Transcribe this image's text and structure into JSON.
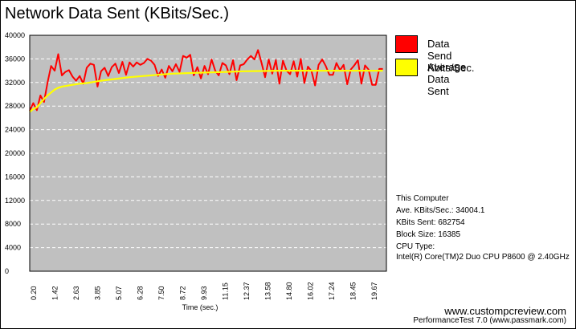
{
  "chart_data": {
    "type": "line",
    "title": "Network Data Sent (KBits/Sec.)",
    "xlabel": "Time (sec.)",
    "ylabel": "",
    "ylim": [
      0,
      40000
    ],
    "yticks": [
      0,
      4000,
      8000,
      12000,
      16000,
      20000,
      24000,
      28000,
      32000,
      36000,
      40000
    ],
    "xticks": [
      "0.20",
      "1.42",
      "2.63",
      "3.85",
      "5.07",
      "6.28",
      "7.50",
      "8.72",
      "9.93",
      "11.15",
      "12.37",
      "13.58",
      "14.80",
      "16.02",
      "17.24",
      "18.45",
      "19.67"
    ],
    "xlim": [
      0,
      20
    ],
    "grid": true,
    "legend_position": "right",
    "series": [
      {
        "name": "Data Send Kbits/Sec.",
        "color": "#ff0000",
        "x": [
          0.0,
          0.2,
          0.4,
          0.6,
          0.8,
          1.0,
          1.2,
          1.4,
          1.6,
          1.8,
          2.0,
          2.2,
          2.4,
          2.6,
          2.8,
          3.0,
          3.2,
          3.4,
          3.6,
          3.8,
          4.0,
          4.2,
          4.4,
          4.6,
          4.8,
          5.0,
          5.2,
          5.4,
          5.6,
          5.8,
          6.0,
          6.2,
          6.4,
          6.6,
          6.8,
          7.0,
          7.2,
          7.4,
          7.6,
          7.8,
          8.0,
          8.2,
          8.4,
          8.6,
          8.8,
          9.0,
          9.2,
          9.4,
          9.6,
          9.8,
          10.0,
          10.2,
          10.4,
          10.6,
          10.8,
          11.0,
          11.2,
          11.4,
          11.6,
          11.8,
          12.0,
          12.2,
          12.4,
          12.6,
          12.8,
          13.0,
          13.2,
          13.4,
          13.6,
          13.8,
          14.0,
          14.2,
          14.4,
          14.6,
          14.8,
          15.0,
          15.2,
          15.4,
          15.6,
          15.8,
          16.0,
          16.2,
          16.4,
          16.6,
          16.8,
          17.0,
          17.2,
          17.4,
          17.6,
          17.8,
          18.0,
          18.2,
          18.4,
          18.6,
          18.8,
          19.0,
          19.2,
          19.4,
          19.6,
          19.8
        ],
        "values": [
          27200,
          28500,
          27300,
          29800,
          28700,
          32000,
          34800,
          34000,
          36800,
          33200,
          33800,
          34100,
          33000,
          32300,
          33100,
          31800,
          34500,
          35200,
          35000,
          31300,
          33900,
          34500,
          33100,
          34600,
          35200,
          33600,
          35500,
          33300,
          35400,
          34700,
          35400,
          35000,
          35300,
          36000,
          35700,
          35000,
          33100,
          34200,
          32800,
          34800,
          33900,
          35100,
          33800,
          36500,
          36200,
          36700,
          33200,
          34600,
          32700,
          34800,
          33400,
          35900,
          34000,
          33200,
          35300,
          34900,
          33400,
          35800,
          32400,
          34900,
          35100,
          35900,
          36500,
          35900,
          37500,
          35300,
          32900,
          35900,
          33500,
          35800,
          31800,
          35700,
          34000,
          33400,
          35600,
          33000,
          36000,
          31900,
          34700,
          33900,
          31500,
          35000,
          35900,
          34800,
          33300,
          33300,
          35300,
          34100,
          35000,
          31700,
          34200,
          34900,
          35800,
          31800,
          34900,
          34200,
          31600,
          31600,
          34300,
          34300
        ],
        "unit": "KBits/Sec."
      },
      {
        "name": "Average Data Sent",
        "color": "#ffff00",
        "x": [
          0.0,
          0.2,
          0.4,
          0.6,
          0.8,
          1.0,
          1.2,
          1.4,
          1.6,
          1.8,
          2.0,
          2.4,
          2.8,
          3.2,
          3.6,
          4.0,
          4.8,
          5.6,
          6.4,
          7.2,
          8.0,
          9.0,
          10.0,
          11.0,
          12.0,
          13.0,
          14.0,
          15.0,
          16.0,
          17.0,
          18.0,
          19.0,
          19.8
        ],
        "values": [
          27000,
          27500,
          27800,
          28500,
          29200,
          29800,
          30300,
          30800,
          31100,
          31300,
          31400,
          31600,
          31800,
          31900,
          32100,
          32300,
          32600,
          32900,
          33100,
          33300,
          33500,
          33600,
          33700,
          33800,
          33900,
          33950,
          34000,
          34000,
          34000,
          34000,
          34000,
          34000,
          34000
        ]
      }
    ]
  },
  "info": {
    "computer": "This Computer",
    "ave_label": "Ave. KBits/Sec.: 34004.1",
    "sent_label": "KBits Sent: 682754",
    "block_label": "Block Size: 16385",
    "cpu_label": "CPU Type:",
    "cpu_name": "Intel(R) Core(TM)2 Duo CPU P8600 @ 2.40GHz"
  },
  "footer": {
    "website": "www.custompcreview.com",
    "product": "PerformanceTest 7.0 (www.passmark.com)"
  },
  "colors": {
    "plot_background": "#c0c0c0",
    "grid": "#ffffff"
  }
}
